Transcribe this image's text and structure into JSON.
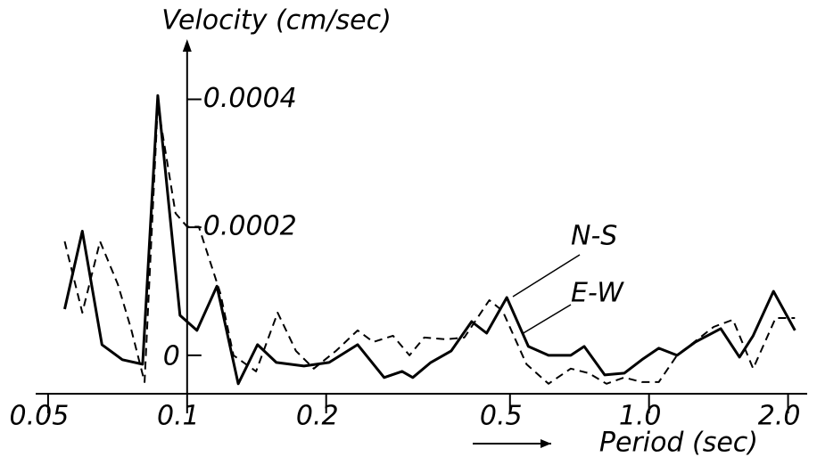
{
  "chart_data": {
    "type": "line",
    "y_label": "Velocity (cm/sec)",
    "x_label": "Period (sec)",
    "x_scale": "log",
    "xlim": [
      0.047,
      2.2
    ],
    "xticks": [
      0.05,
      0.1,
      0.2,
      0.5,
      {
        "value": 1,
        "label": "1.0"
      },
      {
        "value": 2,
        "label": "2.0"
      }
    ],
    "ylim": [
      -6e-05,
      0.00048
    ],
    "yticks": [
      0,
      0.0002,
      0.0004
    ],
    "grid": false,
    "series": [
      {
        "name": "N-S",
        "color": "#000000",
        "line_style": "solid",
        "x": [
          0.0543,
          0.0593,
          0.0654,
          0.0724,
          0.0801,
          0.0864,
          0.0965,
          0.105,
          0.116,
          0.129,
          0.142,
          0.156,
          0.179,
          0.203,
          0.234,
          0.267,
          0.292,
          0.308,
          0.337,
          0.373,
          0.413,
          0.445,
          0.492,
          0.548,
          0.606,
          0.677,
          0.724,
          0.802,
          0.884,
          0.965,
          1.05,
          1.15,
          1.26,
          1.43,
          1.57,
          1.68,
          1.86,
          2.07
        ],
        "values": [
          7.22e-05,
          0.000194,
          1.67e-05,
          -6.9e-06,
          -1.39e-05,
          0.000406,
          6.25e-05,
          3.89e-05,
          0.000108,
          -4.44e-05,
          1.67e-05,
          -1.11e-05,
          -1.67e-05,
          -1.11e-05,
          1.67e-05,
          -3.47e-05,
          -2.5e-05,
          -3.47e-05,
          -1.11e-05,
          6.9e-06,
          5.28e-05,
          3.47e-05,
          9.03e-05,
          1.39e-05,
          0,
          0,
          1.39e-05,
          -3.06e-05,
          -2.78e-05,
          -6.9e-06,
          1.11e-05,
          0,
          2.08e-05,
          4.17e-05,
          -2.8e-06,
          3.06e-05,
          0.0001,
          3.89e-05
        ]
      },
      {
        "name": "E-W",
        "color": "#000000",
        "line_style": "dashed",
        "x": [
          0.0543,
          0.0593,
          0.0648,
          0.0708,
          0.0756,
          0.0809,
          0.0864,
          0.0944,
          0.1,
          0.106,
          0.118,
          0.126,
          0.141,
          0.157,
          0.172,
          0.188,
          0.21,
          0.234,
          0.253,
          0.279,
          0.303,
          0.326,
          0.364,
          0.398,
          0.451,
          0.482,
          0.543,
          0.606,
          0.677,
          0.74,
          0.809,
          0.884,
          0.965,
          1.05,
          1.15,
          1.38,
          1.52,
          1.68,
          1.88,
          2.07
        ],
        "values": [
          0.000178,
          6.67e-05,
          0.000178,
          0.000111,
          4.17e-05,
          -4.17e-05,
          0.000392,
          0.000222,
          0.000201,
          0.000201,
          9.72e-05,
          0,
          -2.5e-05,
          6.67e-05,
          6.9e-06,
          -2.08e-05,
          6.9e-06,
          3.89e-05,
          2.08e-05,
          3.06e-05,
          0,
          2.78e-05,
          2.5e-05,
          2.78e-05,
          8.61e-05,
          6.94e-05,
          -1.39e-05,
          -4.44e-05,
          -2.08e-05,
          -2.78e-05,
          -4.44e-05,
          -3.47e-05,
          -4.17e-05,
          -4.17e-05,
          0,
          4.44e-05,
          5.56e-05,
          -2.08e-05,
          5.83e-05,
          5.83e-05
        ]
      }
    ]
  }
}
